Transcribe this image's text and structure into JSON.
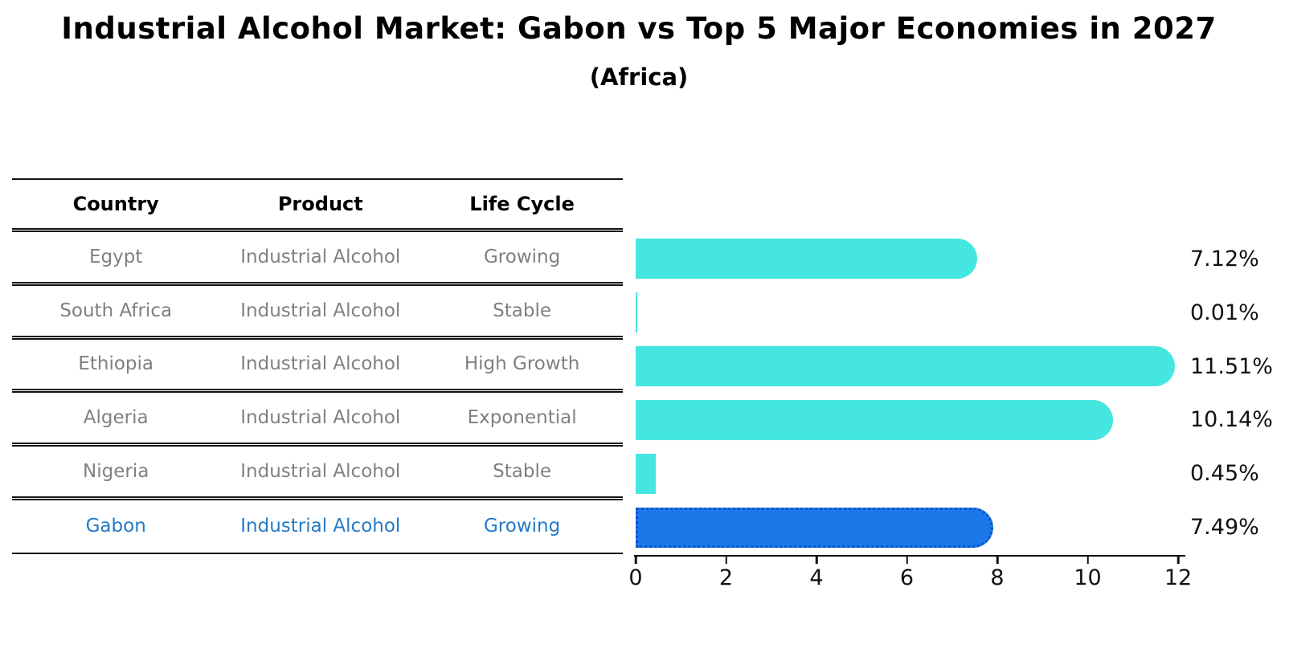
{
  "page": {
    "title": "Industrial Alcohol Market: Gabon vs Top 5 Major Economies in 2027",
    "subtitle": "(Africa)"
  },
  "table": {
    "headers": {
      "country": "Country",
      "product": "Product",
      "life_cycle": "Life Cycle"
    },
    "rows": [
      {
        "country": "Egypt",
        "product": "Industrial Alcohol",
        "life_cycle": "Growing",
        "highlighted": false
      },
      {
        "country": "South Africa",
        "product": "Industrial Alcohol",
        "life_cycle": "Stable",
        "highlighted": false
      },
      {
        "country": "Ethiopia",
        "product": "Industrial Alcohol",
        "life_cycle": "High Growth",
        "highlighted": false
      },
      {
        "country": "Algeria",
        "product": "Industrial Alcohol",
        "life_cycle": "Exponential",
        "highlighted": false
      },
      {
        "country": "Nigeria",
        "product": "Industrial Alcohol",
        "life_cycle": "Stable",
        "highlighted": false
      },
      {
        "country": "Gabon",
        "product": "Industrial Alcohol",
        "life_cycle": "Growing",
        "highlighted": true
      }
    ]
  },
  "chart_data": {
    "type": "bar",
    "orientation": "horizontal",
    "title": "Industrial Alcohol Market: Gabon vs Top 5 Major Economies in 2027",
    "subtitle": "(Africa)",
    "categories": [
      "Egypt",
      "South Africa",
      "Ethiopia",
      "Algeria",
      "Nigeria",
      "Gabon"
    ],
    "values": [
      7.12,
      0.01,
      11.51,
      10.14,
      0.45,
      7.49
    ],
    "value_labels": [
      "7.12%",
      "0.01%",
      "11.51%",
      "10.14%",
      "0.45%",
      "7.49%"
    ],
    "xlim": [
      0,
      12
    ],
    "xticks": [
      0,
      2,
      4,
      6,
      8,
      10,
      12
    ],
    "grid": false,
    "legend": false,
    "highlight_index": 5,
    "bar_color": "#46E6E0",
    "highlight_bar_color": "#1B78E8",
    "highlight_border_color": "#0B54CC",
    "highlight_text_color": "#2479C8"
  },
  "colors": {
    "background": "#FFFFFF",
    "text_primary": "#111111",
    "table_text": "#808080"
  }
}
